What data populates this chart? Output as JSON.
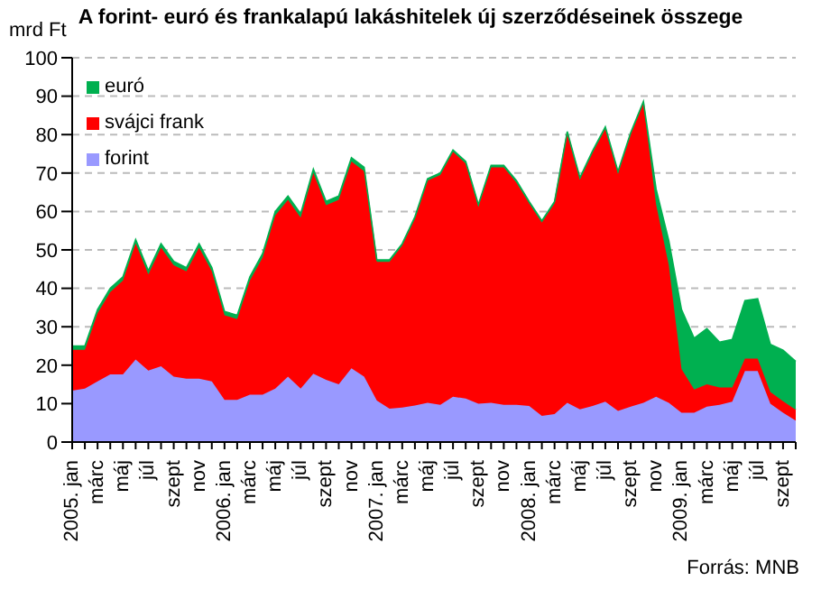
{
  "chart_data": {
    "type": "area",
    "stacked": true,
    "title": "A forint- euró és frankalapú lakáshitelek új szerződéseinek összege",
    "ylabel": "mrd Ft",
    "annotations": [
      "Forrás: MNB"
    ],
    "categories": [
      "2005. jan",
      null,
      "márc",
      null,
      "máj",
      null,
      "júl",
      null,
      "szept",
      null,
      "nov",
      null,
      "2006. jan",
      null,
      "márc",
      null,
      "máj",
      null,
      "júl",
      null,
      "szept",
      null,
      "nov",
      null,
      "2007. jan",
      null,
      "márc",
      null,
      "máj",
      null,
      "júl",
      null,
      "szept",
      null,
      "nov",
      null,
      "2008. jan",
      null,
      "márc",
      null,
      "máj",
      null,
      "júl",
      null,
      "szept",
      null,
      "nov",
      null,
      "2009. jan",
      null,
      "márc",
      null,
      "máj",
      null,
      "júl",
      null,
      "szept",
      null
    ],
    "series": [
      {
        "name": "forint",
        "color": "#9999ff",
        "values": [
          13.4,
          13.9,
          15.8,
          17.6,
          17.6,
          21.5,
          18.6,
          19.7,
          17,
          16.5,
          16.5,
          15.8,
          11,
          11,
          12.3,
          12.3,
          13.9,
          17,
          13.9,
          17.8,
          16.2,
          15,
          19.2,
          17,
          10.8,
          8.7,
          9,
          9.5,
          10.2,
          9.7,
          11.8,
          11.3,
          10,
          10.2,
          9.7,
          9.7,
          9.4,
          6.8,
          7.3,
          10.2,
          8.5,
          9.4,
          10.5,
          8.1,
          9.2,
          10.2,
          11.8,
          10.2,
          7.6,
          7.6,
          9.2,
          9.7,
          10.5,
          18.5,
          18.5,
          10,
          7.6,
          5.6
        ]
      },
      {
        "name": "svájci frank",
        "color": "#ff0000",
        "values": [
          10.6,
          10.1,
          17.7,
          21.4,
          24.4,
          30.2,
          25,
          30.9,
          29,
          27.9,
          34.1,
          28.6,
          22,
          21,
          29.7,
          35.7,
          45.1,
          46,
          44.5,
          52.2,
          45.4,
          48,
          53.8,
          53.5,
          36.1,
          38.2,
          42.1,
          48.6,
          57.8,
          59.8,
          63.7,
          61.2,
          51.3,
          61.3,
          61.8,
          57.8,
          52.7,
          50.3,
          54.8,
          70.1,
          59.8,
          65.9,
          71,
          61.8,
          70.8,
          77.9,
          50,
          35.8,
          11.4,
          6.1,
          5.8,
          4.5,
          3.7,
          3.2,
          3.2,
          3,
          3,
          2.8
        ]
      },
      {
        "name": "euró",
        "color": "#00b050",
        "values": [
          1,
          1,
          1,
          1,
          1,
          1,
          1,
          1,
          1,
          1,
          1,
          1,
          1,
          1,
          1,
          1,
          1,
          1,
          1,
          1,
          1,
          1,
          1,
          1,
          0.5,
          0.5,
          0.5,
          0.5,
          0.5,
          0.5,
          0.5,
          0.5,
          0.5,
          0.5,
          0.5,
          0.5,
          0.5,
          0.5,
          0.5,
          0.5,
          0.5,
          0.5,
          0.5,
          0.5,
          0.5,
          0.5,
          4,
          6.4,
          15.5,
          13.3,
          14.5,
          11.8,
          12.5,
          15.1,
          15.6,
          12.4,
          13.3,
          12.6
        ]
      }
    ],
    "ylim": [
      0,
      100
    ],
    "yticks": [
      0,
      10,
      20,
      30,
      40,
      50,
      60,
      70,
      80,
      90,
      100
    ],
    "grid": "y",
    "legend": "top left"
  }
}
